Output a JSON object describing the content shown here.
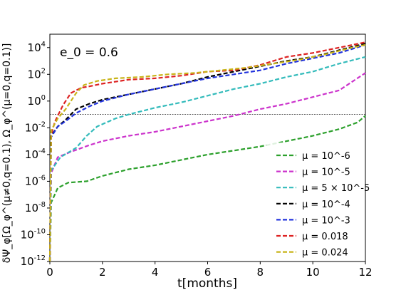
{
  "chart_data": {
    "type": "line",
    "annotation": "e_0 = 0.6",
    "xlabel": "t[months]",
    "ylabel": "δΨ_φ[Ω_φ^(μ≠0,q=0.1), Ω_φ^(μ=0,q=0.1)]",
    "xlim": [
      0,
      12
    ],
    "ylim_log10": [
      -12,
      5
    ],
    "y_scale": "log",
    "x_ticks": [
      "0",
      "2",
      "4",
      "6",
      "8",
      "10",
      "12"
    ],
    "y_tick_exponents": [
      "-12",
      "-10",
      "-8",
      "-6",
      "-4",
      "-2",
      "0",
      "2",
      "4"
    ],
    "y_tick_base": "10",
    "reference_line_y_log10": -1.0,
    "legend_position": "lower right",
    "series": [
      {
        "name": "μ = 10^-6",
        "color": "#2ca02c",
        "log10_y_at_x": [
          [
            0,
            -12
          ],
          [
            0.05,
            -7.6
          ],
          [
            0.3,
            -6.5
          ],
          [
            0.7,
            -6.1
          ],
          [
            1.4,
            -6.0
          ],
          [
            2,
            -5.6
          ],
          [
            3,
            -5.1
          ],
          [
            4,
            -4.8
          ],
          [
            5,
            -4.4
          ],
          [
            6,
            -4.0
          ],
          [
            7,
            -3.7
          ],
          [
            8,
            -3.4
          ],
          [
            9,
            -3.0
          ],
          [
            10,
            -2.6
          ],
          [
            11,
            -2.1
          ],
          [
            11.7,
            -1.6
          ],
          [
            12,
            -1.1
          ]
        ]
      },
      {
        "name": "μ = 10^-5",
        "color": "#cc33cc",
        "log10_y_at_x": [
          [
            0,
            -12
          ],
          [
            0.05,
            -5.4
          ],
          [
            0.3,
            -4.2
          ],
          [
            0.8,
            -3.8
          ],
          [
            1.5,
            -3.3
          ],
          [
            2,
            -3.0
          ],
          [
            3,
            -2.6
          ],
          [
            4,
            -2.3
          ],
          [
            5,
            -1.9
          ],
          [
            6,
            -1.5
          ],
          [
            7,
            -1.1
          ],
          [
            8,
            -0.6
          ],
          [
            9,
            -0.2
          ],
          [
            10,
            0.3
          ],
          [
            11,
            0.8
          ],
          [
            12,
            2.1
          ]
        ]
      },
      {
        "name": "μ = 5 × 10^-5",
        "color": "#33bbbb",
        "log10_y_at_x": [
          [
            0,
            -12
          ],
          [
            0.05,
            -5.2
          ],
          [
            0.4,
            -4.2
          ],
          [
            1,
            -3.5
          ],
          [
            1.4,
            -2.6
          ],
          [
            1.8,
            -1.9
          ],
          [
            2.5,
            -1.3
          ],
          [
            3,
            -1.0
          ],
          [
            4,
            -0.5
          ],
          [
            5,
            -0.1
          ],
          [
            6,
            0.4
          ],
          [
            7,
            0.9
          ],
          [
            8,
            1.3
          ],
          [
            9,
            1.8
          ],
          [
            10,
            2.2
          ],
          [
            11,
            2.8
          ],
          [
            12,
            3.3
          ]
        ]
      },
      {
        "name": "μ = 10^-4",
        "color": "#000000",
        "log10_y_at_x": [
          [
            0,
            -12
          ],
          [
            0.05,
            -2.6
          ],
          [
            0.3,
            -1.9
          ],
          [
            0.6,
            -1.4
          ],
          [
            1,
            -0.6
          ],
          [
            1.5,
            -0.2
          ],
          [
            2,
            0.1
          ],
          [
            3,
            0.5
          ],
          [
            4,
            0.9
          ],
          [
            5,
            1.3
          ],
          [
            6,
            1.8
          ],
          [
            7,
            2.2
          ],
          [
            8,
            2.6
          ],
          [
            9,
            3.0
          ],
          [
            10,
            3.3
          ],
          [
            11,
            3.8
          ],
          [
            12,
            4.3
          ]
        ]
      },
      {
        "name": "μ = 10^-3",
        "color": "#2233dd",
        "log10_y_at_x": [
          [
            0,
            -12
          ],
          [
            0.05,
            -2.7
          ],
          [
            0.3,
            -1.9
          ],
          [
            0.6,
            -1.5
          ],
          [
            1,
            -0.9
          ],
          [
            1.5,
            -0.4
          ],
          [
            2,
            0.0
          ],
          [
            3,
            0.5
          ],
          [
            4,
            0.9
          ],
          [
            5,
            1.3
          ],
          [
            6,
            1.7
          ],
          [
            7,
            2.0
          ],
          [
            8,
            2.3
          ],
          [
            9,
            2.8
          ],
          [
            10,
            3.2
          ],
          [
            11,
            3.6
          ],
          [
            12,
            4.2
          ]
        ]
      },
      {
        "name": "μ = 0.018",
        "color": "#dd2222",
        "log10_y_at_x": [
          [
            0,
            -12
          ],
          [
            0.05,
            -2.5
          ],
          [
            0.2,
            -1.5
          ],
          [
            0.5,
            -0.3
          ],
          [
            0.8,
            0.6
          ],
          [
            1.2,
            1.0
          ],
          [
            1.5,
            1.1
          ],
          [
            2,
            1.3
          ],
          [
            3,
            1.6
          ],
          [
            4,
            1.7
          ],
          [
            5,
            1.9
          ],
          [
            6,
            2.2
          ],
          [
            7,
            2.3
          ],
          [
            8,
            2.7
          ],
          [
            9,
            3.3
          ],
          [
            10,
            3.6
          ],
          [
            11,
            4.0
          ],
          [
            12,
            4.4
          ]
        ]
      },
      {
        "name": "μ = 0.024",
        "color": "#c8b418",
        "log10_y_at_x": [
          [
            0,
            -12
          ],
          [
            0.05,
            -2.2
          ],
          [
            0.3,
            -1.3
          ],
          [
            0.6,
            -0.6
          ],
          [
            1,
            0.6
          ],
          [
            1.3,
            1.2
          ],
          [
            1.8,
            1.5
          ],
          [
            2.5,
            1.7
          ],
          [
            3.5,
            1.8
          ],
          [
            4.5,
            2.0
          ],
          [
            5.5,
            2.1
          ],
          [
            6.5,
            2.3
          ],
          [
            7.5,
            2.5
          ],
          [
            8.5,
            2.8
          ],
          [
            9.5,
            3.1
          ],
          [
            10.5,
            3.5
          ],
          [
            11.5,
            4.0
          ],
          [
            12,
            4.2
          ]
        ]
      }
    ]
  }
}
